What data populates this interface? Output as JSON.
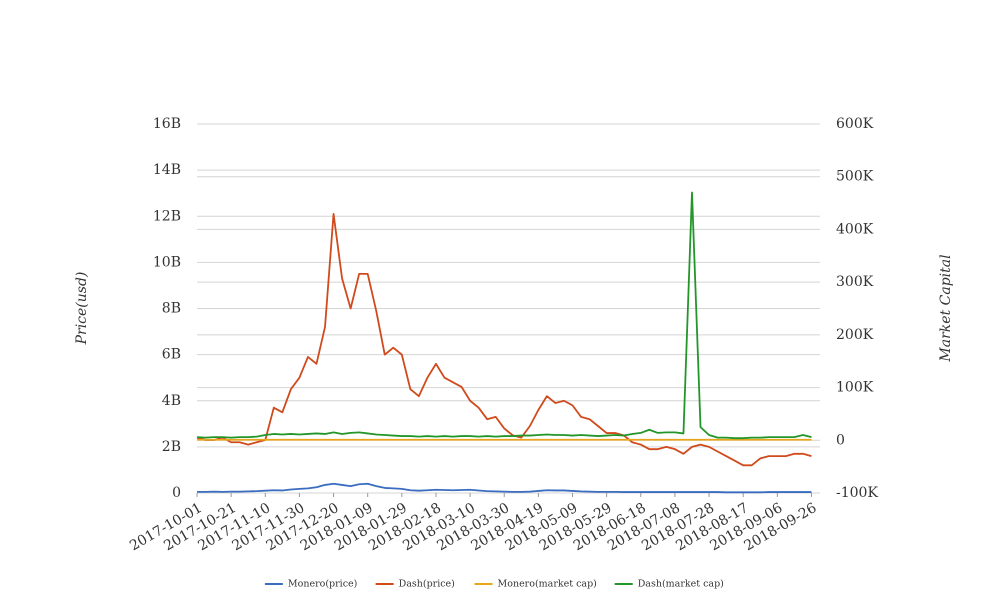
{
  "chart_data": {
    "type": "line",
    "y_label": "Price(usd)",
    "y2_label": "Market Capital",
    "x": [
      "2017-10-01",
      "2017-10-06",
      "2017-10-11",
      "2017-10-16",
      "2017-10-21",
      "2017-10-26",
      "2017-10-31",
      "2017-11-05",
      "2017-11-10",
      "2017-11-15",
      "2017-11-20",
      "2017-11-25",
      "2017-11-30",
      "2017-12-05",
      "2017-12-10",
      "2017-12-15",
      "2017-12-20",
      "2017-12-25",
      "2017-12-30",
      "2018-01-04",
      "2018-01-09",
      "2018-01-14",
      "2018-01-19",
      "2018-01-24",
      "2018-01-29",
      "2018-02-03",
      "2018-02-08",
      "2018-02-13",
      "2018-02-18",
      "2018-02-23",
      "2018-02-28",
      "2018-03-05",
      "2018-03-10",
      "2018-03-15",
      "2018-03-20",
      "2018-03-25",
      "2018-03-30",
      "2018-04-04",
      "2018-04-09",
      "2018-04-14",
      "2018-04-19",
      "2018-04-24",
      "2018-04-29",
      "2018-05-04",
      "2018-05-09",
      "2018-05-14",
      "2018-05-19",
      "2018-05-24",
      "2018-05-29",
      "2018-06-03",
      "2018-06-08",
      "2018-06-13",
      "2018-06-18",
      "2018-06-23",
      "2018-06-28",
      "2018-07-03",
      "2018-07-08",
      "2018-07-13",
      "2018-07-18",
      "2018-07-23",
      "2018-07-28",
      "2018-08-02",
      "2018-08-07",
      "2018-08-12",
      "2018-08-17",
      "2018-08-22",
      "2018-08-27",
      "2018-09-01",
      "2018-09-06",
      "2018-09-11",
      "2018-09-16",
      "2018-09-21",
      "2018-09-26"
    ],
    "xlim": [
      "2017-10-01",
      "2018-10-01"
    ],
    "xticks": [
      "2017-10-01",
      "2017-10-21",
      "2017-11-10",
      "2017-11-30",
      "2017-12-20",
      "2018-01-09",
      "2018-01-29",
      "2018-02-18",
      "2018-03-10",
      "2018-03-30",
      "2018-04-19",
      "2018-05-09",
      "2018-05-29",
      "2018-06-18",
      "2018-07-08",
      "2018-07-28",
      "2018-08-17",
      "2018-09-06",
      "2018-09-26"
    ],
    "ylim": [
      0,
      16000000000
    ],
    "yticks": [
      0,
      {
        "value": 2000000000,
        "label": "2B"
      },
      {
        "value": 4000000000,
        "label": "4B"
      },
      {
        "value": 6000000000,
        "label": "6B"
      },
      {
        "value": 8000000000,
        "label": "8B"
      },
      {
        "value": 10000000000,
        "label": "10B"
      },
      {
        "value": 12000000000,
        "label": "12B"
      },
      {
        "value": 14000000000,
        "label": "14B"
      },
      {
        "value": 16000000000,
        "label": "16B"
      }
    ],
    "y2lim": [
      -100000,
      600000
    ],
    "y2ticks": [
      {
        "value": -100000,
        "label": "-100K"
      },
      0,
      {
        "value": 100000,
        "label": "100K"
      },
      {
        "value": 200000,
        "label": "200K"
      },
      {
        "value": 300000,
        "label": "300K"
      },
      {
        "value": 400000,
        "label": "400K"
      },
      {
        "value": 500000,
        "label": "500K"
      },
      {
        "value": 600000,
        "label": "600K"
      }
    ],
    "grid": true,
    "legend": "bottom",
    "series": [
      {
        "name": "Monero(price)",
        "color": "#3a6cc0",
        "values": [
          50000000.0,
          50000000.0,
          60000000.0,
          50000000.0,
          60000000.0,
          60000000.0,
          70000000.0,
          80000000.0,
          100000000.0,
          120000000.0,
          110000000.0,
          150000000.0,
          180000000.0,
          200000000.0,
          250000000.0,
          350000000.0,
          400000000.0,
          350000000.0,
          300000000.0,
          380000000.0,
          400000000.0,
          300000000.0,
          220000000.0,
          200000000.0,
          180000000.0,
          120000000.0,
          100000000.0,
          120000000.0,
          140000000.0,
          130000000.0,
          120000000.0,
          130000000.0,
          140000000.0,
          110000000.0,
          80000000.0,
          70000000.0,
          60000000.0,
          50000000.0,
          50000000.0,
          60000000.0,
          90000000.0,
          120000000.0,
          110000000.0,
          110000000.0,
          90000000.0,
          70000000.0,
          60000000.0,
          50000000.0,
          50000000.0,
          50000000.0,
          40000000.0,
          40000000.0,
          40000000.0,
          40000000.0,
          40000000.0,
          40000000.0,
          40000000.0,
          40000000.0,
          40000000.0,
          40000000.0,
          40000000.0,
          40000000.0,
          30000000.0,
          30000000.0,
          30000000.0,
          30000000.0,
          30000000.0,
          40000000.0,
          40000000.0,
          40000000.0,
          40000000.0,
          40000000.0,
          40000000.0
        ]
      },
      {
        "name": "Dash(price)",
        "color": "#d04a1c",
        "values": [
          2400000000.0,
          2300000000.0,
          2300000000.0,
          2400000000.0,
          2200000000.0,
          2200000000.0,
          2100000000.0,
          2200000000.0,
          2300000000.0,
          3700000000.0,
          3500000000.0,
          4500000000.0,
          5000000000.0,
          5900000000.0,
          5600000000.0,
          7200000000.0,
          12100000000.0,
          9300000000.0,
          8000000000.0,
          9500000000.0,
          9500000000.0,
          7900000000.0,
          6000000000.0,
          6300000000.0,
          6000000000.0,
          4500000000.0,
          4200000000.0,
          5000000000.0,
          5600000000.0,
          5000000000.0,
          4800000000.0,
          4600000000.0,
          4000000000.0,
          3700000000.0,
          3200000000.0,
          3300000000.0,
          2800000000.0,
          2500000000.0,
          2400000000.0,
          2900000000.0,
          3600000000.0,
          4200000000.0,
          3900000000.0,
          4000000000.0,
          3800000000.0,
          3300000000.0,
          3200000000.0,
          2900000000.0,
          2600000000.0,
          2600000000.0,
          2500000000.0,
          2200000000.0,
          2100000000.0,
          1900000000.0,
          1900000000.0,
          2000000000.0,
          1900000000.0,
          1700000000.0,
          2000000000.0,
          2100000000.0,
          2000000000.0,
          1800000000.0,
          1600000000.0,
          1400000000.0,
          1200000000.0,
          1200000000.0,
          1500000000.0,
          1600000000.0,
          1600000000.0,
          1600000000.0,
          1700000000.0,
          1700000000.0,
          1600000000.0
        ]
      },
      {
        "name": "Monero(market cap)",
        "color": "#e8a51a",
        "axis": "y2",
        "values": [
          1000,
          1000,
          1000,
          1000,
          1000,
          1000,
          1000,
          1000,
          1000,
          1000,
          1000,
          1000,
          1000,
          1000,
          1000,
          1000,
          1000,
          1000,
          1000,
          1000,
          1000,
          1000,
          1000,
          1000,
          1000,
          1000,
          1000,
          1000,
          1000,
          1000,
          1000,
          1000,
          1000,
          1000,
          1000,
          1000,
          1000,
          1000,
          1000,
          1000,
          1000,
          1000,
          1000,
          1000,
          1000,
          1000,
          1000,
          1000,
          1000,
          1000,
          1000,
          1000,
          1000,
          1000,
          1000,
          1000,
          1000,
          1000,
          1000,
          1000,
          1000,
          1000,
          1000,
          1000,
          1000,
          1000,
          1000,
          1000,
          1000,
          1000,
          1000,
          1000,
          1000
        ]
      },
      {
        "name": "Dash(market cap)",
        "color": "#23962a",
        "axis": "y2",
        "values": [
          6000,
          5000,
          6000,
          6000,
          5000,
          6000,
          6000,
          7000,
          10000,
          12000,
          11000,
          12000,
          11000,
          12000,
          13000,
          12000,
          15000,
          12000,
          14000,
          15000,
          13000,
          11000,
          10000,
          9000,
          8000,
          8000,
          7000,
          8000,
          7000,
          8000,
          7000,
          8000,
          8000,
          7000,
          8000,
          7000,
          8000,
          8000,
          9000,
          9000,
          10000,
          11000,
          10000,
          10000,
          9000,
          10000,
          9000,
          8000,
          9000,
          10000,
          9000,
          12000,
          14000,
          20000,
          14000,
          15000,
          15000,
          13000,
          470000,
          25000,
          10000,
          5000,
          5000,
          4000,
          4000,
          5000,
          5000,
          6000,
          6000,
          6000,
          6000,
          10000,
          6000
        ]
      }
    ]
  }
}
